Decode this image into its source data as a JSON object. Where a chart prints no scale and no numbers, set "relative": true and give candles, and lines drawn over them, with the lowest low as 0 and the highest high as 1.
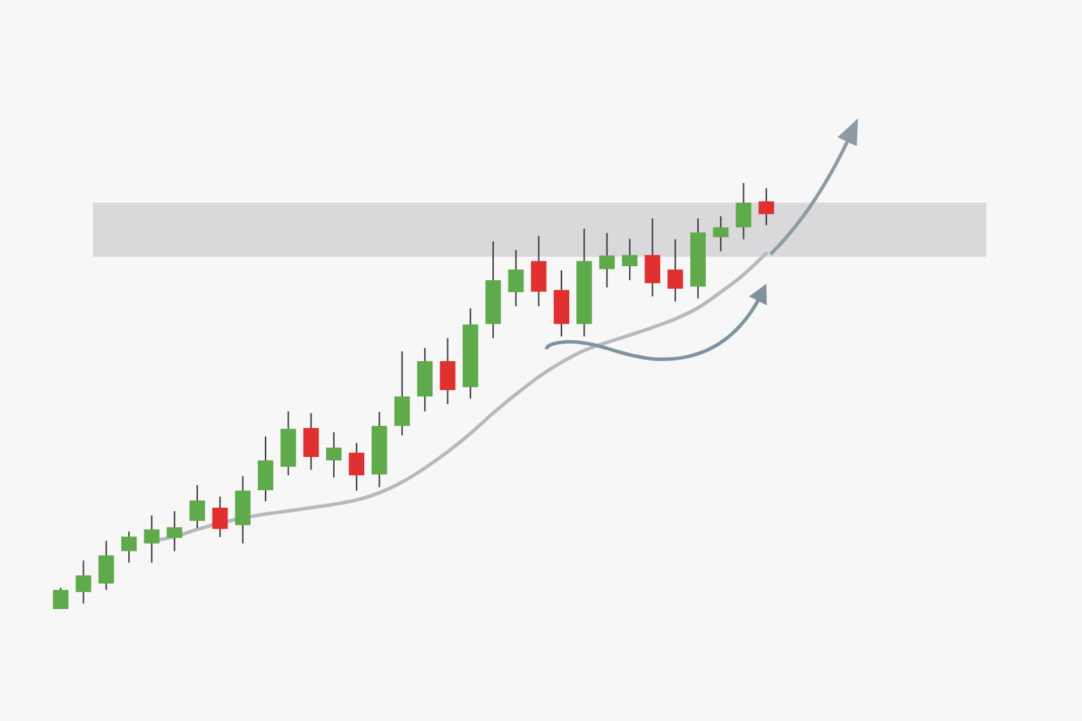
{
  "chart_data": {
    "type": "candlestick",
    "relative": true,
    "categories": [
      null,
      null,
      null,
      null,
      null,
      null,
      null,
      null,
      null,
      null,
      null,
      null,
      null,
      null,
      null,
      null,
      null,
      null,
      null,
      null,
      null,
      null,
      null,
      null,
      null,
      null,
      null,
      null,
      null,
      null,
      null,
      null
    ],
    "ohlc": [
      [
        0,
        0.05,
        0,
        0.045
      ],
      [
        0.04,
        0.114,
        0.013,
        0.079
      ],
      [
        0.06,
        0.16,
        0.045,
        0.126
      ],
      [
        0.136,
        0.182,
        0.109,
        0.17
      ],
      [
        0.154,
        0.22,
        0.109,
        0.187
      ],
      [
        0.167,
        0.23,
        0.136,
        0.192
      ],
      [
        0.207,
        0.291,
        0.19,
        0.255
      ],
      [
        0.238,
        0.264,
        0.169,
        0.188
      ],
      [
        0.197,
        0.312,
        0.154,
        0.278
      ],
      [
        0.279,
        0.405,
        0.253,
        0.349
      ],
      [
        0.334,
        0.464,
        0.314,
        0.423
      ],
      [
        0.425,
        0.46,
        0.327,
        0.357
      ],
      [
        0.349,
        0.415,
        0.309,
        0.379
      ],
      [
        0.367,
        0.39,
        0.278,
        0.314
      ],
      [
        0.316,
        0.463,
        0.286,
        0.43
      ],
      [
        0.43,
        0.605,
        0.408,
        0.499
      ],
      [
        0.499,
        0.613,
        0.464,
        0.582
      ],
      [
        0.582,
        0.636,
        0.481,
        0.514
      ],
      [
        0.521,
        0.706,
        0.494,
        0.668
      ],
      [
        0.669,
        0.863,
        0.636,
        0.772
      ],
      [
        0.744,
        0.843,
        0.711,
        0.797
      ],
      [
        0.817,
        0.876,
        0.711,
        0.745
      ],
      [
        0.749,
        0.795,
        0.64,
        0.669
      ],
      [
        0.669,
        0.893,
        0.64,
        0.817
      ],
      [
        0.798,
        0.883,
        0.755,
        0.83
      ],
      [
        0.805,
        0.869,
        0.772,
        0.831
      ],
      [
        0.831,
        0.917,
        0.734,
        0.765
      ],
      [
        0.797,
        0.868,
        0.722,
        0.752
      ],
      [
        0.757,
        0.917,
        0.729,
        0.884
      ],
      [
        0.873,
        0.922,
        0.84,
        0.896
      ],
      [
        0.896,
        1,
        0.868,
        0.954
      ],
      [
        0.957,
        0.988,
        0.901,
        0.927
      ]
    ],
    "colors": [
      "#5faa4a",
      "#5faa4a",
      "#5faa4a",
      "#5faa4a",
      "#5faa4a",
      "#5faa4a",
      "#5faa4a",
      "#e03030",
      "#5faa4a",
      "#5faa4a",
      "#5faa4a",
      "#e03030",
      "#5faa4a",
      "#e03030",
      "#5faa4a",
      "#5faa4a",
      "#5faa4a",
      "#e03030",
      "#5faa4a",
      "#5faa4a",
      "#5faa4a",
      "#e03030",
      "#e03030",
      "#5faa4a",
      "#5faa4a",
      "#5faa4a",
      "#e03030",
      "#e03030",
      "#5faa4a",
      "#5faa4a",
      "#5faa4a",
      "#e03030"
    ],
    "series": [
      {
        "type": "line",
        "color": "#b4bac0",
        "values": [
          null,
          null,
          null,
          null,
          0.16,
          0.17,
          0.187,
          null,
          null,
          0.223,
          0.23,
          0.238,
          0.246,
          0.256,
          0.273,
          0.298,
          0.331,
          0.369,
          0.412,
          0.46,
          0.504,
          0.545,
          0.579,
          0.607,
          0.626,
          0.643,
          0.661,
          0.681,
          0.707,
          0.744,
          0.785,
          0.835
        ]
      }
    ],
    "bands": [
      {
        "axis": "y",
        "from": 0.827,
        "to": 0.954,
        "color": "#d9d9db"
      }
    ]
  }
}
